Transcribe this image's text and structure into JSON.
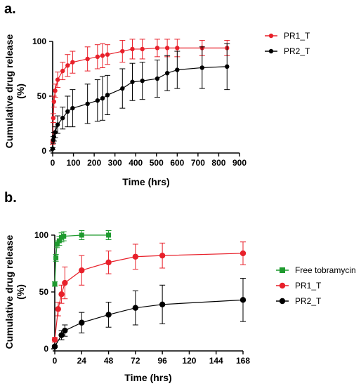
{
  "chart_data": [
    {
      "panel": "a.",
      "type": "line",
      "xlabel": "Time (hrs)",
      "ylabel": "Cumulative drug release",
      "ylabel_unit": "(%)",
      "xlim": [
        0,
        900
      ],
      "ylim": [
        0,
        100
      ],
      "xticks": [
        0,
        100,
        200,
        300,
        400,
        500,
        600,
        700,
        800,
        900
      ],
      "yticks": [
        0,
        50,
        100
      ],
      "grid": false,
      "legend_position": "top-right",
      "error_bars": true,
      "series": [
        {
          "name": "PR1_T",
          "color": "#e8202a",
          "marker": "circle",
          "points": [
            {
              "x": 0,
              "y": 8,
              "err": 2
            },
            {
              "x": 3,
              "y": 30,
              "err": 4
            },
            {
              "x": 6,
              "y": 45,
              "err": 5
            },
            {
              "x": 12,
              "y": 55,
              "err": 6
            },
            {
              "x": 24,
              "y": 65,
              "err": 7
            },
            {
              "x": 48,
              "y": 73,
              "err": 8
            },
            {
              "x": 72,
              "y": 78,
              "err": 10
            },
            {
              "x": 96,
              "y": 81,
              "err": 10
            },
            {
              "x": 168,
              "y": 84,
              "err": 11
            },
            {
              "x": 216,
              "y": 86,
              "err": 11
            },
            {
              "x": 240,
              "y": 87,
              "err": 11
            },
            {
              "x": 264,
              "y": 88,
              "err": 9
            },
            {
              "x": 336,
              "y": 91,
              "err": 10
            },
            {
              "x": 384,
              "y": 93,
              "err": 9
            },
            {
              "x": 432,
              "y": 93,
              "err": 9
            },
            {
              "x": 504,
              "y": 94,
              "err": 8
            },
            {
              "x": 552,
              "y": 94,
              "err": 8
            },
            {
              "x": 600,
              "y": 94,
              "err": 8
            },
            {
              "x": 720,
              "y": 94,
              "err": 7
            },
            {
              "x": 840,
              "y": 94,
              "err": 7
            }
          ]
        },
        {
          "name": "PR2_T",
          "color": "#000000",
          "marker": "circle",
          "points": [
            {
              "x": 0,
              "y": 2,
              "err": 1
            },
            {
              "x": 3,
              "y": 10,
              "err": 3
            },
            {
              "x": 6,
              "y": 13,
              "err": 4
            },
            {
              "x": 12,
              "y": 17,
              "err": 5
            },
            {
              "x": 24,
              "y": 24,
              "err": 8
            },
            {
              "x": 48,
              "y": 30,
              "err": 10
            },
            {
              "x": 72,
              "y": 36,
              "err": 14
            },
            {
              "x": 96,
              "y": 39,
              "err": 17
            },
            {
              "x": 168,
              "y": 43,
              "err": 18
            },
            {
              "x": 216,
              "y": 46,
              "err": 19
            },
            {
              "x": 240,
              "y": 48,
              "err": 20
            },
            {
              "x": 264,
              "y": 51,
              "err": 18
            },
            {
              "x": 336,
              "y": 57,
              "err": 18
            },
            {
              "x": 384,
              "y": 63,
              "err": 17
            },
            {
              "x": 432,
              "y": 64,
              "err": 17
            },
            {
              "x": 504,
              "y": 66,
              "err": 17
            },
            {
              "x": 552,
              "y": 71,
              "err": 16
            },
            {
              "x": 600,
              "y": 74,
              "err": 17
            },
            {
              "x": 720,
              "y": 76,
              "err": 19
            },
            {
              "x": 840,
              "y": 77,
              "err": 21
            }
          ]
        }
      ]
    },
    {
      "panel": "b.",
      "type": "line",
      "xlabel": "Time (hrs)",
      "ylabel": "Cumulative drug release",
      "ylabel_unit": "(%)",
      "xlim": [
        0,
        168
      ],
      "ylim": [
        0,
        100
      ],
      "xticks": [
        0,
        24,
        48,
        72,
        96,
        120,
        144,
        168
      ],
      "yticks": [
        0,
        50,
        100
      ],
      "grid": false,
      "legend_position": "right",
      "error_bars": true,
      "series": [
        {
          "name": "Free tobramycin",
          "color": "#1e9a2e",
          "marker": "square",
          "points": [
            {
              "x": 0,
              "y": 57,
              "err": 2
            },
            {
              "x": 1,
              "y": 80,
              "err": 3
            },
            {
              "x": 2,
              "y": 92,
              "err": 3
            },
            {
              "x": 4,
              "y": 95,
              "err": 4
            },
            {
              "x": 6,
              "y": 98,
              "err": 4
            },
            {
              "x": 8,
              "y": 99,
              "err": 4
            },
            {
              "x": 24,
              "y": 100,
              "err": 4
            },
            {
              "x": 48,
              "y": 100,
              "err": 4
            }
          ]
        },
        {
          "name": "PR1_T",
          "color": "#e8202a",
          "marker": "circle",
          "points": [
            {
              "x": 0,
              "y": 8,
              "err": 2
            },
            {
              "x": 3,
              "y": 35,
              "err": 6
            },
            {
              "x": 6,
              "y": 48,
              "err": 8
            },
            {
              "x": 9,
              "y": 58,
              "err": 14
            },
            {
              "x": 24,
              "y": 69,
              "err": 13
            },
            {
              "x": 48,
              "y": 76,
              "err": 10
            },
            {
              "x": 72,
              "y": 81,
              "err": 11
            },
            {
              "x": 96,
              "y": 82,
              "err": 11
            },
            {
              "x": 168,
              "y": 84,
              "err": 10
            }
          ]
        },
        {
          "name": "PR2_T",
          "color": "#000000",
          "marker": "circle",
          "points": [
            {
              "x": 0,
              "y": 2,
              "err": 1
            },
            {
              "x": 6,
              "y": 12,
              "err": 4
            },
            {
              "x": 9,
              "y": 16,
              "err": 5
            },
            {
              "x": 24,
              "y": 23,
              "err": 9
            },
            {
              "x": 48,
              "y": 30,
              "err": 11
            },
            {
              "x": 72,
              "y": 36,
              "err": 15
            },
            {
              "x": 96,
              "y": 39,
              "err": 17
            },
            {
              "x": 168,
              "y": 43,
              "err": 19
            }
          ]
        }
      ]
    }
  ]
}
